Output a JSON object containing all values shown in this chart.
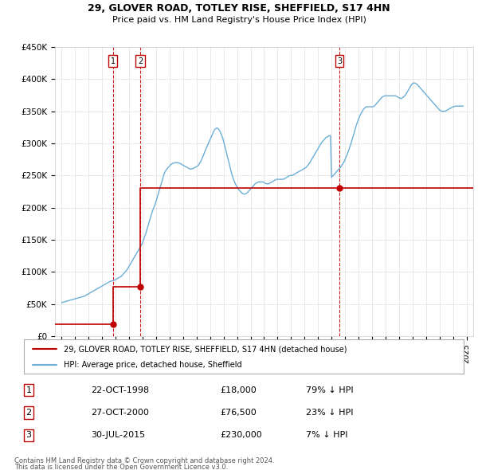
{
  "title": "29, GLOVER ROAD, TOTLEY RISE, SHEFFIELD, S17 4HN",
  "subtitle": "Price paid vs. HM Land Registry's House Price Index (HPI)",
  "ylabel_values": [
    "£0",
    "£50K",
    "£100K",
    "£150K",
    "£200K",
    "£250K",
    "£300K",
    "£350K",
    "£400K",
    "£450K"
  ],
  "ylim": [
    0,
    450000
  ],
  "yticks": [
    0,
    50000,
    100000,
    150000,
    200000,
    250000,
    300000,
    350000,
    400000,
    450000
  ],
  "xlim_start": 1994.5,
  "xlim_end": 2025.5,
  "sale_dates": [
    1998.81,
    2000.82,
    2015.58
  ],
  "sale_prices": [
    18000,
    76500,
    230000
  ],
  "sale_labels": [
    "1",
    "2",
    "3"
  ],
  "sale_date_strs": [
    "22-OCT-1998",
    "27-OCT-2000",
    "30-JUL-2015"
  ],
  "sale_price_strs": [
    "£18,000",
    "£76,500",
    "£230,000"
  ],
  "sale_pct_strs": [
    "79% ↓ HPI",
    "23% ↓ HPI",
    "7% ↓ HPI"
  ],
  "hpi_color": "#6BAED6",
  "sale_color": "#C00000",
  "legend_label_red": "29, GLOVER ROAD, TOTLEY RISE, SHEFFIELD, S17 4HN (detached house)",
  "legend_label_blue": "HPI: Average price, detached house, Sheffield",
  "footer1": "Contains HM Land Registry data © Crown copyright and database right 2024.",
  "footer2": "This data is licensed under the Open Government Licence v3.0.",
  "hpi_years": [
    1995.0,
    1995.08,
    1995.17,
    1995.25,
    1995.33,
    1995.42,
    1995.5,
    1995.58,
    1995.67,
    1995.75,
    1995.83,
    1995.92,
    1996.0,
    1996.08,
    1996.17,
    1996.25,
    1996.33,
    1996.42,
    1996.5,
    1996.58,
    1996.67,
    1996.75,
    1996.83,
    1996.92,
    1997.0,
    1997.08,
    1997.17,
    1997.25,
    1997.33,
    1997.42,
    1997.5,
    1997.58,
    1997.67,
    1997.75,
    1997.83,
    1997.92,
    1998.0,
    1998.08,
    1998.17,
    1998.25,
    1998.33,
    1998.42,
    1998.5,
    1998.58,
    1998.67,
    1998.75,
    1998.83,
    1998.92,
    1999.0,
    1999.08,
    1999.17,
    1999.25,
    1999.33,
    1999.42,
    1999.5,
    1999.58,
    1999.67,
    1999.75,
    1999.83,
    1999.92,
    2000.0,
    2000.08,
    2000.17,
    2000.25,
    2000.33,
    2000.42,
    2000.5,
    2000.58,
    2000.67,
    2000.75,
    2000.83,
    2000.92,
    2001.0,
    2001.08,
    2001.17,
    2001.25,
    2001.33,
    2001.42,
    2001.5,
    2001.58,
    2001.67,
    2001.75,
    2001.83,
    2001.92,
    2002.0,
    2002.08,
    2002.17,
    2002.25,
    2002.33,
    2002.42,
    2002.5,
    2002.58,
    2002.67,
    2002.75,
    2002.83,
    2002.92,
    2003.0,
    2003.08,
    2003.17,
    2003.25,
    2003.33,
    2003.42,
    2003.5,
    2003.58,
    2003.67,
    2003.75,
    2003.83,
    2003.92,
    2004.0,
    2004.08,
    2004.17,
    2004.25,
    2004.33,
    2004.42,
    2004.5,
    2004.58,
    2004.67,
    2004.75,
    2004.83,
    2004.92,
    2005.0,
    2005.08,
    2005.17,
    2005.25,
    2005.33,
    2005.42,
    2005.5,
    2005.58,
    2005.67,
    2005.75,
    2005.83,
    2005.92,
    2006.0,
    2006.08,
    2006.17,
    2006.25,
    2006.33,
    2006.42,
    2006.5,
    2006.58,
    2006.67,
    2006.75,
    2006.83,
    2006.92,
    2007.0,
    2007.08,
    2007.17,
    2007.25,
    2007.33,
    2007.42,
    2007.5,
    2007.58,
    2007.67,
    2007.75,
    2007.83,
    2007.92,
    2008.0,
    2008.08,
    2008.17,
    2008.25,
    2008.33,
    2008.42,
    2008.5,
    2008.58,
    2008.67,
    2008.75,
    2008.83,
    2008.92,
    2009.0,
    2009.08,
    2009.17,
    2009.25,
    2009.33,
    2009.42,
    2009.5,
    2009.58,
    2009.67,
    2009.75,
    2009.83,
    2009.92,
    2010.0,
    2010.08,
    2010.17,
    2010.25,
    2010.33,
    2010.42,
    2010.5,
    2010.58,
    2010.67,
    2010.75,
    2010.83,
    2010.92,
    2011.0,
    2011.08,
    2011.17,
    2011.25,
    2011.33,
    2011.42,
    2011.5,
    2011.58,
    2011.67,
    2011.75,
    2011.83,
    2011.92,
    2012.0,
    2012.08,
    2012.17,
    2012.25,
    2012.33,
    2012.42,
    2012.5,
    2012.58,
    2012.67,
    2012.75,
    2012.83,
    2012.92,
    2013.0,
    2013.08,
    2013.17,
    2013.25,
    2013.33,
    2013.42,
    2013.5,
    2013.58,
    2013.67,
    2013.75,
    2013.83,
    2013.92,
    2014.0,
    2014.08,
    2014.17,
    2014.25,
    2014.33,
    2014.42,
    2014.5,
    2014.58,
    2014.67,
    2014.75,
    2014.83,
    2014.92,
    2015.0,
    2015.08,
    2015.17,
    2015.25,
    2015.33,
    2015.42,
    2015.5,
    2015.58,
    2015.67,
    2015.75,
    2015.83,
    2015.92,
    2016.0,
    2016.08,
    2016.17,
    2016.25,
    2016.33,
    2016.42,
    2016.5,
    2016.58,
    2016.67,
    2016.75,
    2016.83,
    2016.92,
    2017.0,
    2017.08,
    2017.17,
    2017.25,
    2017.33,
    2017.42,
    2017.5,
    2017.58,
    2017.67,
    2017.75,
    2017.83,
    2017.92,
    2018.0,
    2018.08,
    2018.17,
    2018.25,
    2018.33,
    2018.42,
    2018.5,
    2018.58,
    2018.67,
    2018.75,
    2018.83,
    2018.92,
    2019.0,
    2019.08,
    2019.17,
    2019.25,
    2019.33,
    2019.42,
    2019.5,
    2019.58,
    2019.67,
    2019.75,
    2019.83,
    2019.92,
    2020.0,
    2020.08,
    2020.17,
    2020.25,
    2020.33,
    2020.42,
    2020.5,
    2020.58,
    2020.67,
    2020.75,
    2020.83,
    2020.92,
    2021.0,
    2021.08,
    2021.17,
    2021.25,
    2021.33,
    2021.42,
    2021.5,
    2021.58,
    2021.67,
    2021.75,
    2021.83,
    2021.92,
    2022.0,
    2022.08,
    2022.17,
    2022.25,
    2022.33,
    2022.42,
    2022.5,
    2022.58,
    2022.67,
    2022.75,
    2022.83,
    2022.92,
    2023.0,
    2023.08,
    2023.17,
    2023.25,
    2023.33,
    2023.42,
    2023.5,
    2023.58,
    2023.67,
    2023.75,
    2023.83,
    2023.92,
    2024.0,
    2024.08,
    2024.17,
    2024.25,
    2024.33,
    2024.42,
    2024.5,
    2024.58,
    2024.67,
    2024.75
  ],
  "hpi_values": [
    52000,
    52500,
    53000,
    53500,
    54000,
    54500,
    55000,
    55500,
    56000,
    56500,
    57000,
    57500,
    58000,
    58500,
    59000,
    59500,
    60000,
    60500,
    61000,
    61500,
    62000,
    63000,
    64000,
    65000,
    66000,
    67000,
    68000,
    69000,
    70000,
    71000,
    72000,
    73000,
    74000,
    75000,
    76000,
    77000,
    78000,
    79000,
    80000,
    81000,
    82000,
    83000,
    84000,
    85000,
    85500,
    86000,
    86500,
    87000,
    88000,
    89000,
    90000,
    91000,
    92000,
    93000,
    95000,
    97000,
    99000,
    101000,
    103000,
    106000,
    109000,
    112000,
    115000,
    118000,
    121000,
    124000,
    127000,
    130000,
    133000,
    136000,
    139000,
    142000,
    146000,
    151000,
    156000,
    161000,
    167000,
    173000,
    179000,
    185000,
    191000,
    196000,
    200000,
    205000,
    210000,
    216000,
    222000,
    228000,
    234000,
    240000,
    246000,
    252000,
    256000,
    259000,
    261000,
    263000,
    265000,
    267000,
    268000,
    269000,
    269500,
    270000,
    270000,
    270000,
    269500,
    269000,
    268000,
    267000,
    266000,
    265000,
    264000,
    263000,
    262000,
    261000,
    260000,
    260000,
    260500,
    261000,
    262000,
    263000,
    264000,
    265000,
    267000,
    270000,
    273000,
    277000,
    281000,
    286000,
    290000,
    294000,
    298000,
    302000,
    306000,
    310000,
    314000,
    318000,
    321000,
    323000,
    324000,
    323000,
    321000,
    318000,
    314000,
    309000,
    303000,
    296000,
    289000,
    282000,
    275000,
    268000,
    261000,
    254000,
    248000,
    243000,
    239000,
    235000,
    232000,
    229000,
    227000,
    225000,
    223000,
    222000,
    221000,
    221000,
    222000,
    223000,
    225000,
    227000,
    229000,
    231000,
    233000,
    235000,
    237000,
    238000,
    239000,
    240000,
    240000,
    240000,
    240000,
    240000,
    239000,
    238000,
    237000,
    237000,
    237000,
    238000,
    239000,
    240000,
    241000,
    242000,
    243000,
    244000,
    244000,
    244000,
    244000,
    244000,
    244000,
    244000,
    245000,
    246000,
    247000,
    248000,
    249000,
    250000,
    250000,
    250000,
    251000,
    252000,
    253000,
    254000,
    255000,
    256000,
    257000,
    258000,
    259000,
    260000,
    261000,
    262000,
    264000,
    266000,
    268000,
    271000,
    274000,
    277000,
    280000,
    283000,
    286000,
    289000,
    292000,
    295000,
    298000,
    301000,
    303000,
    305000,
    307000,
    309000,
    310000,
    311000,
    312000,
    312000,
    247000,
    249000,
    251000,
    253000,
    255000,
    257000,
    259000,
    261000,
    263000,
    265000,
    268000,
    271000,
    275000,
    279000,
    283000,
    288000,
    293000,
    298000,
    304000,
    310000,
    316000,
    322000,
    328000,
    333000,
    338000,
    342000,
    346000,
    349000,
    352000,
    354000,
    356000,
    357000,
    357000,
    357000,
    357000,
    357000,
    357000,
    357000,
    358000,
    360000,
    362000,
    364000,
    366000,
    368000,
    370000,
    372000,
    373000,
    374000,
    374000,
    374000,
    374000,
    374000,
    374000,
    374000,
    374000,
    374000,
    374000,
    374000,
    373000,
    372000,
    371000,
    370000,
    370000,
    371000,
    372000,
    374000,
    376000,
    379000,
    382000,
    385000,
    388000,
    391000,
    393000,
    394000,
    394000,
    393000,
    392000,
    390000,
    388000,
    386000,
    384000,
    382000,
    380000,
    378000,
    376000,
    374000,
    372000,
    370000,
    368000,
    366000,
    364000,
    362000,
    360000,
    358000,
    356000,
    354000,
    352000,
    351000,
    350000,
    350000,
    350000,
    350000,
    351000,
    352000,
    353000,
    354000,
    355000,
    356000,
    357000,
    357000,
    358000,
    358000,
    358000,
    358000,
    358000,
    358000,
    358000,
    358000
  ]
}
